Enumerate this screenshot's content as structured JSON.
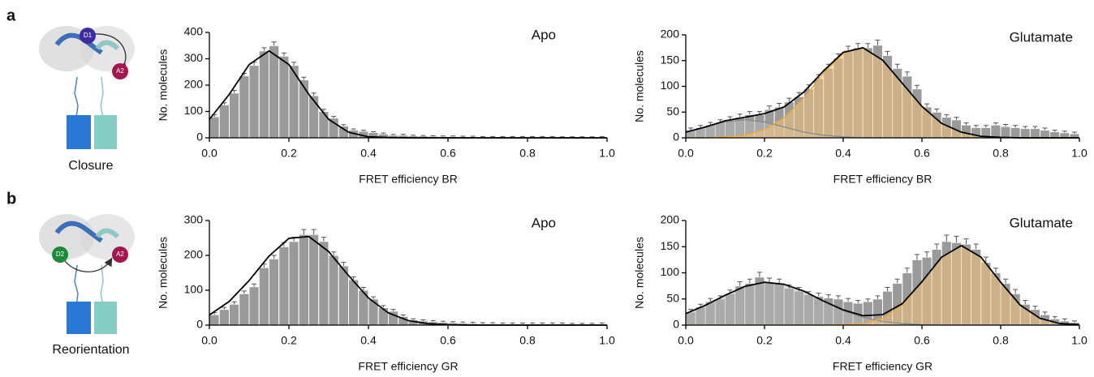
{
  "figure": {
    "panels": [
      {
        "letter": "a",
        "label": "Closure",
        "donor": "D1",
        "acceptor": "A2"
      },
      {
        "letter": "b",
        "label": "Reorientation",
        "donor": "D2",
        "acceptor": "A2"
      }
    ]
  },
  "chart_data": [
    {
      "type": "histogram",
      "annotation": "Apo",
      "xlabel": "FRET efficiency BR",
      "ylabel": "No. molecules",
      "color": "#9a9a9a",
      "bins": [
        0,
        0.025,
        0.05,
        0.075,
        0.1,
        0.125,
        0.15,
        0.175,
        0.2,
        0.225,
        0.25,
        0.275,
        0.3,
        0.325,
        0.35,
        0.375,
        0.4,
        0.425,
        0.45,
        0.475,
        0.5,
        0.525,
        0.55,
        0.575,
        0.6,
        0.625,
        0.65,
        0.675,
        0.7,
        0.725,
        0.75,
        0.775,
        0.8,
        0.825,
        0.85,
        0.875,
        0.9,
        0.925,
        0.95,
        0.975,
        1
      ],
      "values": [
        80,
        125,
        170,
        235,
        275,
        330,
        350,
        310,
        275,
        220,
        160,
        100,
        75,
        45,
        30,
        25,
        20,
        15,
        10,
        10,
        8,
        7,
        6,
        5,
        5,
        4,
        4,
        3,
        3,
        3,
        3,
        3,
        3,
        3,
        3,
        2,
        2,
        2,
        2,
        3
      ],
      "errors": [
        8,
        8,
        10,
        10,
        12,
        12,
        14,
        12,
        12,
        10,
        10,
        8,
        6,
        5,
        4,
        4,
        3,
        3,
        3,
        3,
        2,
        2,
        2,
        2,
        2,
        2,
        2,
        2,
        2,
        2,
        2,
        2,
        2,
        2,
        2,
        2,
        2,
        2,
        2,
        2
      ],
      "xlim": [
        0,
        1
      ],
      "ylim": [
        0,
        400
      ],
      "xticks": [
        {
          "value": 0,
          "label": "0.0"
        },
        0.2,
        0.4,
        0.6,
        0.8,
        {
          "value": 1,
          "label": "1.0"
        }
      ],
      "yticks": [
        0,
        100,
        200,
        300,
        400
      ],
      "fit_x": [
        0,
        0.05,
        0.1,
        0.15,
        0.2,
        0.25,
        0.3,
        0.35,
        0.4,
        0.45,
        0.5,
        0.55,
        0.6,
        0.65,
        0.7,
        0.75,
        0.8,
        0.85,
        0.9,
        0.95,
        1
      ],
      "fits": [
        {
          "color": "#000000",
          "values": [
            70,
            165,
            278,
            330,
            278,
            165,
            70,
            21,
            4,
            1,
            0,
            0,
            0,
            0,
            0,
            0,
            0,
            0,
            0,
            0,
            0
          ]
        }
      ]
    },
    {
      "type": "histogram",
      "annotation": "Glutamate",
      "xlabel": "FRET efficiency BR",
      "ylabel": "No. molecules",
      "color": "#9a9a9a",
      "bins": [
        0,
        0.025,
        0.05,
        0.075,
        0.1,
        0.125,
        0.15,
        0.175,
        0.2,
        0.225,
        0.25,
        0.275,
        0.3,
        0.325,
        0.35,
        0.375,
        0.4,
        0.425,
        0.45,
        0.475,
        0.5,
        0.525,
        0.55,
        0.575,
        0.6,
        0.625,
        0.65,
        0.675,
        0.7,
        0.725,
        0.75,
        0.775,
        0.8,
        0.825,
        0.85,
        0.875,
        0.9,
        0.925,
        0.95,
        0.975,
        1
      ],
      "values": [
        15,
        20,
        25,
        30,
        35,
        40,
        45,
        45,
        55,
        60,
        70,
        80,
        95,
        115,
        135,
        155,
        170,
        175,
        175,
        180,
        160,
        135,
        120,
        95,
        60,
        50,
        40,
        35,
        25,
        20,
        20,
        25,
        22,
        20,
        18,
        18,
        15,
        12,
        10,
        8
      ],
      "errors": [
        4,
        4,
        5,
        5,
        6,
        6,
        6,
        6,
        7,
        7,
        7,
        8,
        8,
        8,
        8,
        8,
        8,
        8,
        8,
        10,
        8,
        8,
        8,
        7,
        6,
        6,
        5,
        5,
        4,
        4,
        4,
        4,
        4,
        4,
        4,
        4,
        4,
        3,
        3,
        3
      ],
      "xlim": [
        0,
        1
      ],
      "ylim": [
        0,
        200
      ],
      "xticks": [
        {
          "value": 0,
          "label": "0.0"
        },
        0.2,
        0.4,
        0.6,
        0.8,
        {
          "value": 1,
          "label": "1.0"
        }
      ],
      "yticks": [
        0,
        50,
        100,
        150,
        200
      ],
      "fit_x": [
        0,
        0.05,
        0.1,
        0.15,
        0.2,
        0.25,
        0.3,
        0.35,
        0.4,
        0.45,
        0.5,
        0.55,
        0.6,
        0.65,
        0.7,
        0.75,
        0.8,
        0.85,
        0.9,
        0.95,
        1
      ],
      "fits": [
        {
          "color": "#8a8a8a",
          "fill": "#b8b8b8",
          "values": [
            11,
            21,
            31,
            35,
            31,
            21,
            11,
            5,
            2,
            0,
            0,
            0,
            0,
            0,
            0,
            0,
            0,
            0,
            0,
            0,
            0
          ]
        },
        {
          "color": "#f0a830",
          "fill": "#f2c47e",
          "values": [
            0,
            0,
            2,
            5,
            16,
            39,
            78,
            125,
            164,
            175,
            151,
            106,
            61,
            28,
            11,
            3,
            1,
            0,
            0,
            0,
            0
          ]
        },
        {
          "color": "#000000",
          "values": [
            11,
            21,
            33,
            40,
            47,
            60,
            89,
            130,
            166,
            175,
            151,
            106,
            61,
            28,
            11,
            3,
            1,
            0,
            0,
            0,
            0
          ]
        }
      ]
    },
    {
      "type": "histogram",
      "annotation": "Apo",
      "xlabel": "FRET efficiency GR",
      "ylabel": "No. molecules",
      "color": "#9a9a9a",
      "bins": [
        0,
        0.025,
        0.05,
        0.075,
        0.1,
        0.125,
        0.15,
        0.175,
        0.2,
        0.225,
        0.25,
        0.275,
        0.3,
        0.325,
        0.35,
        0.375,
        0.4,
        0.425,
        0.45,
        0.475,
        0.5,
        0.525,
        0.55,
        0.575,
        0.6,
        0.625,
        0.65,
        0.675,
        0.7,
        0.725,
        0.75,
        0.775,
        0.8,
        0.825,
        0.85,
        0.875,
        0.9,
        0.925,
        0.95,
        0.975,
        1
      ],
      "values": [
        30,
        45,
        60,
        90,
        110,
        165,
        190,
        225,
        240,
        260,
        260,
        240,
        200,
        170,
        130,
        100,
        75,
        50,
        40,
        25,
        15,
        12,
        10,
        8,
        7,
        6,
        5,
        4,
        4,
        3,
        3,
        3,
        3,
        3,
        3,
        3,
        2,
        2,
        2,
        3
      ],
      "errors": [
        6,
        6,
        7,
        8,
        8,
        10,
        10,
        12,
        12,
        14,
        14,
        12,
        10,
        10,
        8,
        8,
        6,
        6,
        5,
        4,
        3,
        3,
        3,
        3,
        3,
        3,
        3,
        3,
        3,
        3,
        3,
        3,
        3,
        3,
        3,
        3,
        3,
        3,
        3,
        3
      ],
      "xlim": [
        0,
        1
      ],
      "ylim": [
        0,
        300
      ],
      "xticks": [
        {
          "value": 0,
          "label": "0.0"
        },
        0.2,
        0.4,
        0.6,
        0.8,
        {
          "value": 1,
          "label": "1.0"
        }
      ],
      "yticks": [
        0,
        100,
        200,
        300
      ],
      "fit_x": [
        0,
        0.05,
        0.1,
        0.15,
        0.2,
        0.25,
        0.3,
        0.35,
        0.4,
        0.45,
        0.5,
        0.55,
        0.6,
        0.65,
        0.7,
        0.75,
        0.8,
        0.85,
        0.9,
        0.95,
        1
      ],
      "fits": [
        {
          "color": "#000000",
          "values": [
            29,
            68,
            128,
            198,
            249,
            254,
            211,
            142,
            78,
            35,
            13,
            4,
            1,
            0,
            0,
            0,
            0,
            0,
            0,
            0,
            0
          ]
        }
      ]
    },
    {
      "type": "histogram",
      "annotation": "Glutamate",
      "xlabel": "FRET efficiency GR",
      "ylabel": "No. molecules",
      "color": "#9a9a9a",
      "bins": [
        0,
        0.025,
        0.05,
        0.075,
        0.1,
        0.125,
        0.15,
        0.175,
        0.2,
        0.225,
        0.25,
        0.275,
        0.3,
        0.325,
        0.35,
        0.375,
        0.4,
        0.425,
        0.45,
        0.475,
        0.5,
        0.525,
        0.55,
        0.575,
        0.6,
        0.625,
        0.65,
        0.675,
        0.7,
        0.725,
        0.75,
        0.775,
        0.8,
        0.825,
        0.85,
        0.875,
        0.9,
        0.925,
        0.95,
        0.975,
        1
      ],
      "values": [
        25,
        35,
        45,
        50,
        60,
        75,
        80,
        92,
        82,
        80,
        70,
        65,
        58,
        55,
        52,
        50,
        45,
        42,
        45,
        50,
        65,
        80,
        100,
        125,
        130,
        145,
        160,
        158,
        155,
        145,
        120,
        100,
        80,
        60,
        40,
        30,
        20,
        12,
        8,
        5
      ],
      "errors": [
        5,
        5,
        6,
        6,
        7,
        8,
        8,
        9,
        8,
        8,
        7,
        7,
        6,
        6,
        6,
        6,
        6,
        5,
        5,
        6,
        7,
        8,
        9,
        10,
        10,
        10,
        12,
        12,
        10,
        10,
        10,
        9,
        8,
        8,
        7,
        6,
        5,
        4,
        4,
        3
      ],
      "xlim": [
        0,
        1
      ],
      "ylim": [
        0,
        200
      ],
      "xticks": [
        {
          "value": 0,
          "label": "0.0"
        },
        0.2,
        0.4,
        0.6,
        0.8,
        {
          "value": 1,
          "label": "1.0"
        }
      ],
      "yticks": [
        0,
        50,
        100,
        150,
        200
      ],
      "fit_x": [
        0,
        0.05,
        0.1,
        0.15,
        0.2,
        0.25,
        0.3,
        0.35,
        0.4,
        0.45,
        0.5,
        0.55,
        0.6,
        0.65,
        0.7,
        0.75,
        0.8,
        0.85,
        0.9,
        0.95,
        1
      ],
      "fits": [
        {
          "color": "#8a8a8a",
          "fill": "#b8b8b8",
          "values": [
            22,
            38,
            57,
            74,
            82,
            78,
            65,
            46,
            28,
            15,
            7,
            3,
            1,
            0,
            0,
            0,
            0,
            0,
            0,
            0,
            0
          ]
        },
        {
          "color": "#f0a830",
          "fill": "#f2c47e",
          "values": [
            0,
            0,
            0,
            0,
            0,
            0,
            0,
            0,
            1,
            3,
            13,
            38,
            82,
            130,
            152,
            130,
            82,
            38,
            13,
            3,
            1
          ]
        },
        {
          "color": "#000000",
          "values": [
            22,
            38,
            57,
            74,
            82,
            78,
            65,
            46,
            29,
            18,
            20,
            41,
            83,
            130,
            152,
            130,
            82,
            38,
            13,
            3,
            1
          ]
        }
      ]
    }
  ]
}
